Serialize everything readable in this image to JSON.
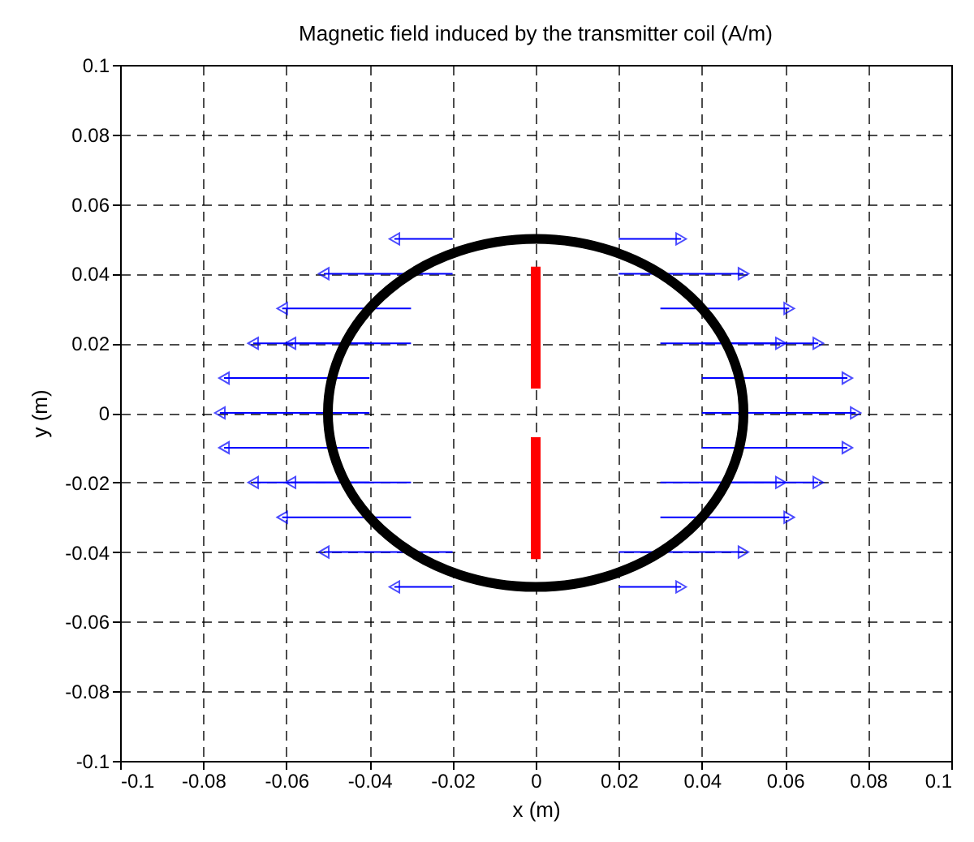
{
  "chart_data": {
    "type": "line",
    "title": "Magnetic field induced by the transmitter coil (A/m)",
    "xlabel": "x (m)",
    "ylabel": "y (m)",
    "xlim": [
      -0.1,
      0.1
    ],
    "ylim": [
      -0.1,
      0.1
    ],
    "xticks": [
      -0.1,
      -0.08,
      -0.06,
      -0.04,
      -0.02,
      0,
      0.02,
      0.04,
      0.06,
      0.08,
      0.1
    ],
    "yticks": [
      -0.1,
      -0.08,
      -0.06,
      -0.04,
      -0.02,
      0,
      0.02,
      0.04,
      0.06,
      0.08,
      0.1
    ],
    "grid": true,
    "series": [
      {
        "color": "#0000ff",
        "marker": "triangle",
        "x": [
          -0.02,
          -0.034
        ],
        "values": [
          0.05,
          0.05
        ]
      },
      {
        "color": "#0000ff",
        "marker": "triangle",
        "x": [
          0.02,
          0.035
        ],
        "values": [
          0.05,
          0.05
        ]
      },
      {
        "color": "#0000ff",
        "marker": "triangle",
        "x": [
          -0.02,
          -0.051
        ],
        "values": [
          0.04,
          0.04
        ]
      },
      {
        "color": "#0000ff",
        "marker": "triangle",
        "x": [
          0.02,
          0.05
        ],
        "values": [
          0.04,
          0.04
        ]
      },
      {
        "color": "#0000ff",
        "marker": "triangle",
        "x": [
          -0.03,
          -0.061
        ],
        "values": [
          0.03,
          0.03
        ]
      },
      {
        "color": "#0000ff",
        "marker": "triangle",
        "x": [
          0.03,
          0.061
        ],
        "values": [
          0.03,
          0.03
        ]
      },
      {
        "color": "#0000ff",
        "marker": "triangle",
        "x": [
          -0.04,
          -0.068
        ],
        "values": [
          0.02,
          0.02
        ]
      },
      {
        "color": "#0000ff",
        "marker": "triangle",
        "x": [
          -0.03,
          -0.059
        ],
        "values": [
          0.02,
          0.02
        ]
      },
      {
        "color": "#0000ff",
        "marker": "triangle",
        "x": [
          0.04,
          0.068
        ],
        "values": [
          0.02,
          0.02
        ]
      },
      {
        "color": "#0000ff",
        "marker": "triangle",
        "x": [
          0.03,
          0.059
        ],
        "values": [
          0.02,
          0.02
        ]
      },
      {
        "color": "#0000ff",
        "marker": "triangle",
        "x": [
          -0.04,
          -0.075
        ],
        "values": [
          0.01,
          0.01
        ]
      },
      {
        "color": "#0000ff",
        "marker": "triangle",
        "x": [
          0.04,
          0.075
        ],
        "values": [
          0.01,
          0.01
        ]
      },
      {
        "color": "#0000ff",
        "marker": "triangle",
        "x": [
          -0.04,
          -0.076
        ],
        "values": [
          0,
          0
        ]
      },
      {
        "color": "#0000ff",
        "marker": "triangle",
        "x": [
          0.04,
          0.077
        ],
        "values": [
          0,
          0
        ]
      },
      {
        "color": "#0000ff",
        "marker": "triangle",
        "x": [
          -0.04,
          -0.075
        ],
        "values": [
          -0.01,
          -0.01
        ]
      },
      {
        "color": "#0000ff",
        "marker": "triangle",
        "x": [
          0.04,
          0.075
        ],
        "values": [
          -0.01,
          -0.01
        ]
      },
      {
        "color": "#0000ff",
        "marker": "triangle",
        "x": [
          -0.04,
          -0.068
        ],
        "values": [
          -0.02,
          -0.02
        ]
      },
      {
        "color": "#0000ff",
        "marker": "triangle",
        "x": [
          -0.03,
          -0.059
        ],
        "values": [
          -0.02,
          -0.02
        ]
      },
      {
        "color": "#0000ff",
        "marker": "triangle",
        "x": [
          0.04,
          0.068
        ],
        "values": [
          -0.02,
          -0.02
        ]
      },
      {
        "color": "#0000ff",
        "marker": "triangle",
        "x": [
          0.03,
          0.059
        ],
        "values": [
          -0.02,
          -0.02
        ]
      },
      {
        "color": "#0000ff",
        "marker": "triangle",
        "x": [
          -0.03,
          -0.061
        ],
        "values": [
          -0.03,
          -0.03
        ]
      },
      {
        "color": "#0000ff",
        "marker": "triangle",
        "x": [
          0.03,
          0.061
        ],
        "values": [
          -0.03,
          -0.03
        ]
      },
      {
        "color": "#0000ff",
        "marker": "triangle",
        "x": [
          -0.02,
          -0.051
        ],
        "values": [
          -0.04,
          -0.04
        ]
      },
      {
        "color": "#0000ff",
        "marker": "triangle",
        "x": [
          0.02,
          0.05
        ],
        "values": [
          -0.04,
          -0.04
        ]
      },
      {
        "color": "#0000ff",
        "marker": "triangle",
        "x": [
          -0.02,
          -0.034
        ],
        "values": [
          -0.05,
          -0.05
        ]
      },
      {
        "color": "#0000ff",
        "marker": "triangle",
        "x": [
          0.02,
          0.035
        ],
        "values": [
          -0.05,
          -0.05
        ]
      },
      {
        "color": "#ff0000",
        "x": [
          0,
          0
        ],
        "values": [
          0.007,
          0.042
        ]
      },
      {
        "color": "#ff0000",
        "x": [
          0,
          0
        ],
        "values": [
          -0.007,
          -0.042
        ]
      }
    ]
  }
}
